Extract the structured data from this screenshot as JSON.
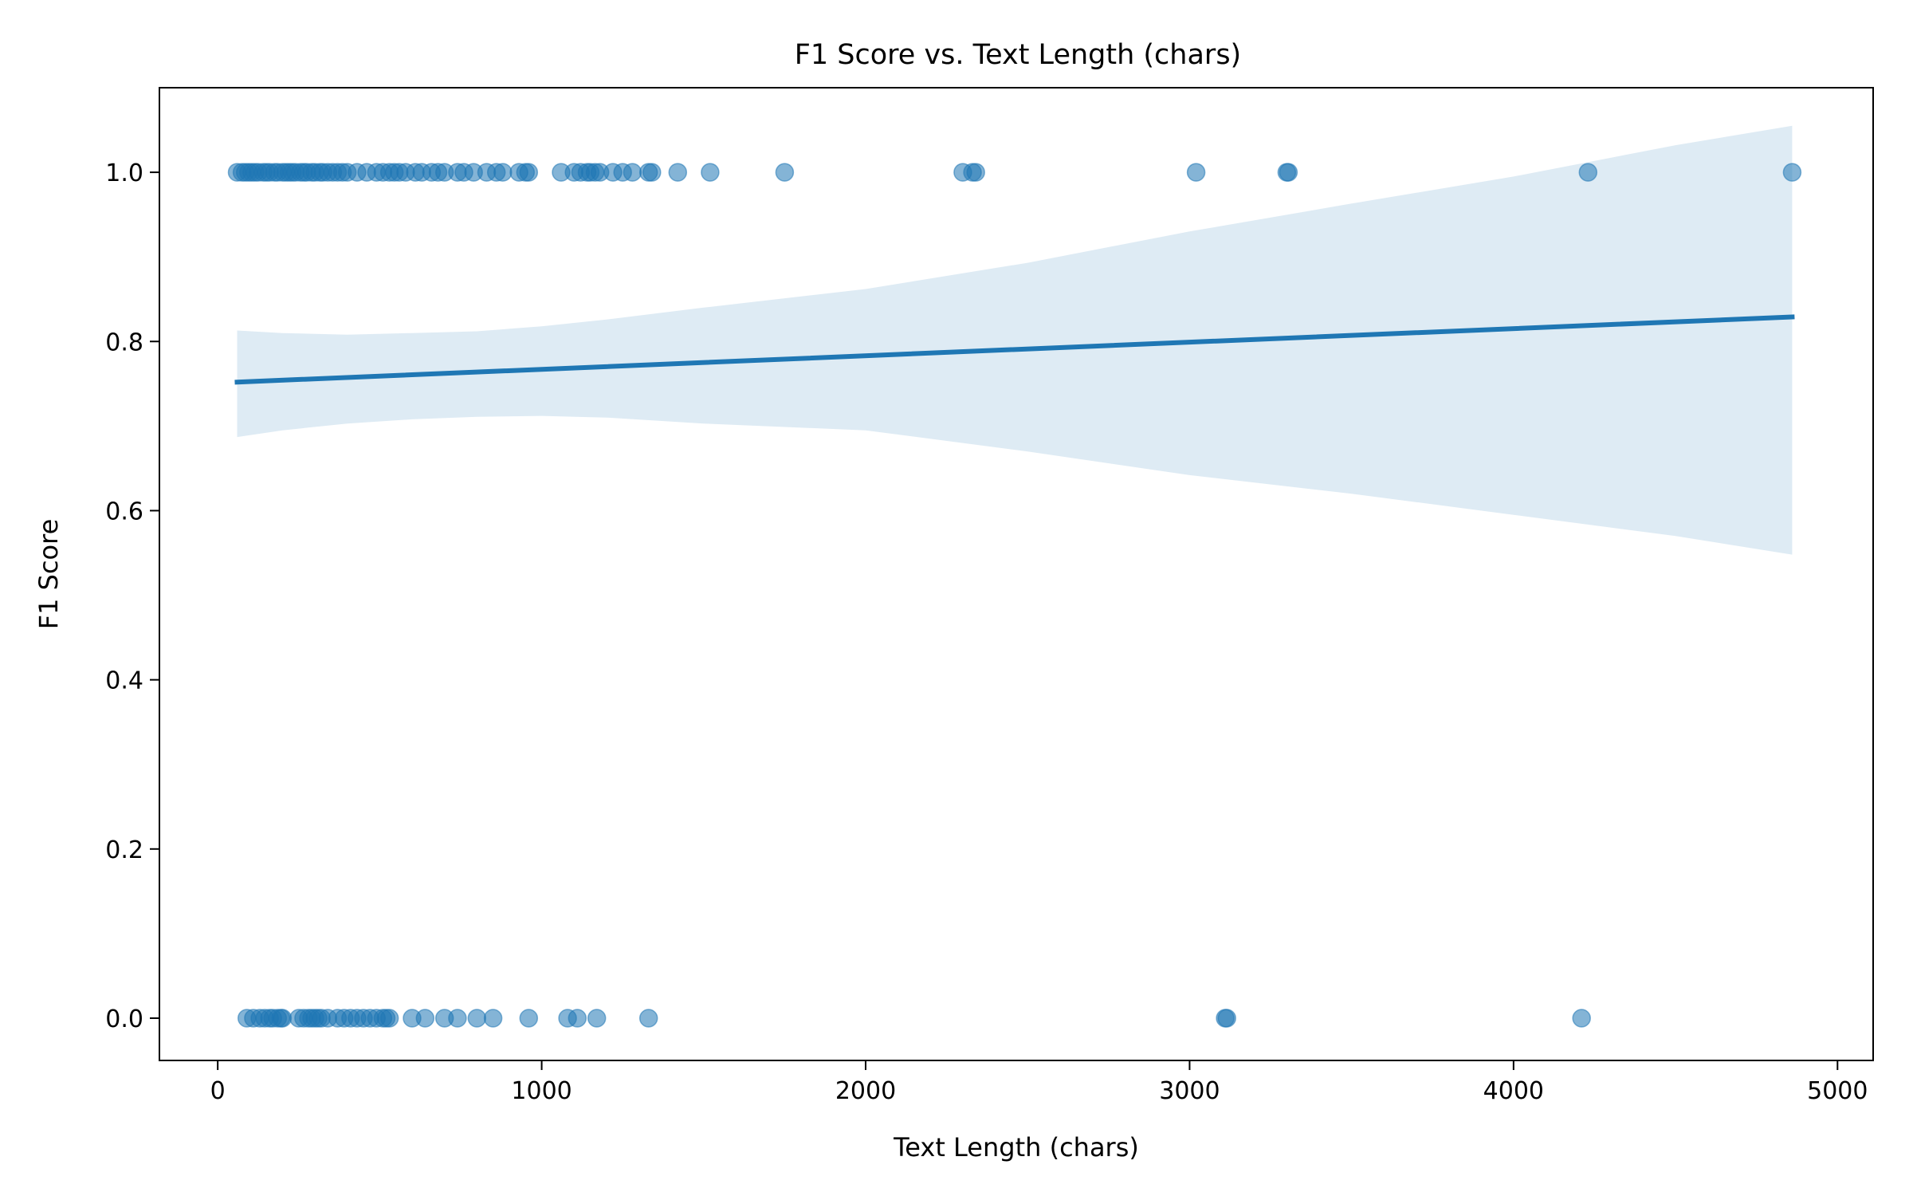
{
  "chart_data": {
    "type": "scatter",
    "title": "F1 Score vs. Text Length (chars)",
    "xlabel": "Text Length (chars)",
    "ylabel": "F1 Score",
    "xlim": [
      -180,
      5110
    ],
    "ylim": [
      -0.05,
      1.1
    ],
    "x_ticks": [
      0,
      1000,
      2000,
      3000,
      4000,
      5000
    ],
    "x_tick_labels": [
      "0",
      "1000",
      "2000",
      "3000",
      "4000",
      "5000"
    ],
    "y_ticks": [
      0.0,
      0.2,
      0.4,
      0.6,
      0.8,
      1.0
    ],
    "y_tick_labels": [
      "0.0",
      "0.2",
      "0.4",
      "0.6",
      "0.8",
      "1.0"
    ],
    "grid": false,
    "legend": "none",
    "colors": {
      "points": "#1f77b4",
      "line": "#1f77b4",
      "band": "#1f77b4"
    },
    "series": [
      {
        "kind": "points",
        "points": [
          [
            60,
            1
          ],
          [
            75,
            1
          ],
          [
            85,
            1
          ],
          [
            95,
            1
          ],
          [
            105,
            1
          ],
          [
            115,
            1
          ],
          [
            125,
            1
          ],
          [
            140,
            1
          ],
          [
            150,
            1
          ],
          [
            160,
            1
          ],
          [
            175,
            1
          ],
          [
            185,
            1
          ],
          [
            200,
            1
          ],
          [
            210,
            1
          ],
          [
            220,
            1
          ],
          [
            230,
            1
          ],
          [
            240,
            1
          ],
          [
            255,
            1
          ],
          [
            265,
            1
          ],
          [
            275,
            1
          ],
          [
            290,
            1
          ],
          [
            300,
            1
          ],
          [
            315,
            1
          ],
          [
            325,
            1
          ],
          [
            340,
            1
          ],
          [
            355,
            1
          ],
          [
            370,
            1
          ],
          [
            385,
            1
          ],
          [
            400,
            1
          ],
          [
            430,
            1
          ],
          [
            460,
            1
          ],
          [
            490,
            1
          ],
          [
            510,
            1
          ],
          [
            530,
            1
          ],
          [
            545,
            1
          ],
          [
            560,
            1
          ],
          [
            580,
            1
          ],
          [
            610,
            1
          ],
          [
            630,
            1
          ],
          [
            660,
            1
          ],
          [
            680,
            1
          ],
          [
            700,
            1
          ],
          [
            740,
            1
          ],
          [
            760,
            1
          ],
          [
            790,
            1
          ],
          [
            830,
            1
          ],
          [
            860,
            1
          ],
          [
            880,
            1
          ],
          [
            930,
            1
          ],
          [
            950,
            1
          ],
          [
            960,
            1
          ],
          [
            1060,
            1
          ],
          [
            1100,
            1
          ],
          [
            1120,
            1
          ],
          [
            1140,
            1
          ],
          [
            1150,
            1
          ],
          [
            1165,
            1
          ],
          [
            1180,
            1
          ],
          [
            1220,
            1
          ],
          [
            1250,
            1
          ],
          [
            1280,
            1
          ],
          [
            1330,
            1
          ],
          [
            1340,
            1
          ],
          [
            1420,
            1
          ],
          [
            1520,
            1
          ],
          [
            1750,
            1
          ],
          [
            2300,
            1
          ],
          [
            2330,
            1
          ],
          [
            2340,
            1
          ],
          [
            3020,
            1
          ],
          [
            3300,
            1
          ],
          [
            3305,
            1
          ],
          [
            4230,
            1
          ],
          [
            4860,
            1
          ],
          [
            90,
            0
          ],
          [
            110,
            0
          ],
          [
            130,
            0
          ],
          [
            145,
            0
          ],
          [
            160,
            0
          ],
          [
            170,
            0
          ],
          [
            185,
            0
          ],
          [
            195,
            0
          ],
          [
            200,
            0
          ],
          [
            250,
            0
          ],
          [
            265,
            0
          ],
          [
            280,
            0
          ],
          [
            290,
            0
          ],
          [
            300,
            0
          ],
          [
            310,
            0
          ],
          [
            320,
            0
          ],
          [
            340,
            0
          ],
          [
            370,
            0
          ],
          [
            390,
            0
          ],
          [
            410,
            0
          ],
          [
            430,
            0
          ],
          [
            450,
            0
          ],
          [
            470,
            0
          ],
          [
            490,
            0
          ],
          [
            510,
            0
          ],
          [
            520,
            0
          ],
          [
            530,
            0
          ],
          [
            600,
            0
          ],
          [
            640,
            0
          ],
          [
            700,
            0
          ],
          [
            740,
            0
          ],
          [
            800,
            0
          ],
          [
            850,
            0
          ],
          [
            960,
            0
          ],
          [
            1080,
            0
          ],
          [
            1110,
            0
          ],
          [
            1170,
            0
          ],
          [
            1330,
            0
          ],
          [
            3110,
            0
          ],
          [
            3115,
            0
          ],
          [
            4210,
            0
          ]
        ]
      },
      {
        "kind": "regression",
        "line": [
          [
            60,
            0.752
          ],
          [
            4860,
            0.829
          ]
        ],
        "ci_x": [
          60,
          200,
          400,
          600,
          800,
          1000,
          1200,
          1500,
          2000,
          2500,
          3000,
          3500,
          4000,
          4500,
          4860
        ],
        "ci_upper": [
          0.813,
          0.81,
          0.808,
          0.81,
          0.812,
          0.818,
          0.826,
          0.84,
          0.862,
          0.893,
          0.93,
          0.963,
          0.995,
          1.032,
          1.055
        ],
        "ci_lower": [
          0.687,
          0.695,
          0.703,
          0.708,
          0.711,
          0.712,
          0.71,
          0.703,
          0.695,
          0.67,
          0.642,
          0.62,
          0.595,
          0.57,
          0.548
        ]
      }
    ]
  }
}
